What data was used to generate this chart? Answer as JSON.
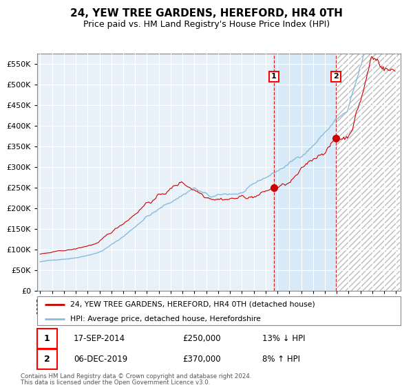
{
  "title": "24, YEW TREE GARDENS, HEREFORD, HR4 0TH",
  "subtitle": "Price paid vs. HM Land Registry's House Price Index (HPI)",
  "legend1": "24, YEW TREE GARDENS, HEREFORD, HR4 0TH (detached house)",
  "legend2": "HPI: Average price, detached house, Herefordshire",
  "sale1_date": "17-SEP-2014",
  "sale1_price": 250000,
  "sale1_label": "13% ↓ HPI",
  "sale2_date": "06-DEC-2019",
  "sale2_price": 370000,
  "sale2_label": "8% ↑ HPI",
  "footer": "Contains HM Land Registry data © Crown copyright and database right 2024.\nThis data is licensed under the Open Government Licence v3.0.",
  "ylim": [
    0,
    575000
  ],
  "yticks": [
    0,
    50000,
    100000,
    150000,
    200000,
    250000,
    300000,
    350000,
    400000,
    450000,
    500000,
    550000
  ],
  "background_color": "#ffffff",
  "plot_bg_color": "#e8f0f8",
  "grid_color": "#ffffff",
  "hpi_color": "#88bbdd",
  "price_color": "#cc0000",
  "shade_color": "#d8eaf8"
}
